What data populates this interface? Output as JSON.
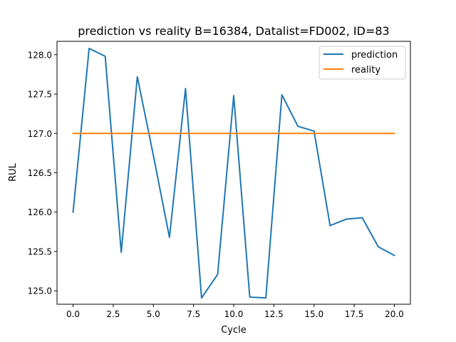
{
  "chart_data": {
    "type": "line",
    "title": "prediction vs reality B=16384, Datalist=FD002, ID=83",
    "xlabel": "Cycle",
    "ylabel": "RUL",
    "xlim": [
      -1.0,
      21.0
    ],
    "ylim": [
      124.83,
      128.17
    ],
    "xticks": [
      0.0,
      2.5,
      5.0,
      7.5,
      10.0,
      12.5,
      15.0,
      17.5,
      20.0
    ],
    "xtick_labels": [
      "0.0",
      "2.5",
      "5.0",
      "7.5",
      "10.0",
      "12.5",
      "15.0",
      "17.5",
      "20.0"
    ],
    "yticks": [
      125.0,
      125.5,
      126.0,
      126.5,
      127.0,
      127.5,
      128.0
    ],
    "ytick_labels": [
      "125.0",
      "125.5",
      "126.0",
      "126.5",
      "127.0",
      "127.5",
      "128.0"
    ],
    "grid": false,
    "legend_position": "top-right",
    "x": [
      0,
      1,
      2,
      3,
      4,
      5,
      6,
      7,
      8,
      9,
      10,
      11,
      12,
      13,
      14,
      15,
      16,
      17,
      18,
      19,
      20
    ],
    "series": [
      {
        "name": "prediction",
        "color": "#1f77b4",
        "values": [
          126.0,
          128.08,
          127.98,
          125.49,
          127.72,
          126.72,
          125.68,
          127.57,
          124.91,
          125.21,
          127.48,
          124.92,
          124.91,
          127.49,
          127.09,
          127.03,
          125.83,
          125.91,
          125.93,
          125.56,
          125.45
        ]
      },
      {
        "name": "reality",
        "color": "#ff7f0e",
        "values": [
          127.0,
          127.0,
          127.0,
          127.0,
          127.0,
          127.0,
          127.0,
          127.0,
          127.0,
          127.0,
          127.0,
          127.0,
          127.0,
          127.0,
          127.0,
          127.0,
          127.0,
          127.0,
          127.0,
          127.0,
          127.0
        ]
      }
    ]
  }
}
